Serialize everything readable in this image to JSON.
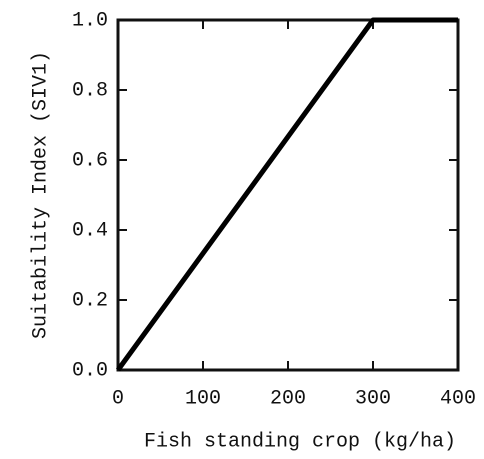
{
  "chart_data": {
    "type": "line",
    "xlabel": "Fish standing crop (kg/ha)",
    "ylabel": "Suitability Index (SIV1)",
    "x": [
      0,
      300,
      400
    ],
    "values": [
      0,
      1,
      1
    ],
    "color": "#000000",
    "xlim": [
      0,
      400
    ],
    "xticks": [
      0,
      100,
      200,
      300,
      400
    ],
    "ylim": [
      0,
      1
    ],
    "yticks": [
      {
        "value": 0,
        "label": "0.0"
      },
      0.2,
      0.4,
      0.6,
      0.8,
      {
        "value": 1,
        "label": "1.0"
      }
    ]
  }
}
